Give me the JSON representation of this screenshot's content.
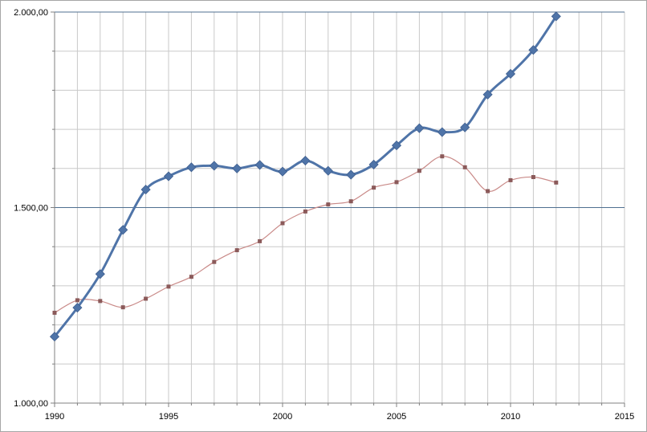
{
  "chart_data": {
    "type": "line",
    "title": "",
    "xlabel": "",
    "ylabel": "",
    "xlim": [
      1990,
      2015
    ],
    "ylim": [
      1000,
      2000
    ],
    "x_ticks": [
      1990,
      1995,
      2000,
      2005,
      2010,
      2015
    ],
    "x_tick_labels": [
      "1990",
      "1995",
      "2000",
      "2005",
      "2010",
      "2015"
    ],
    "y_ticks": [
      1000,
      1500,
      2000
    ],
    "y_tick_labels": [
      "1.000,00",
      "1.500,00",
      "2.000,00"
    ],
    "grid": true,
    "legend": "none",
    "x": [
      1990,
      1991,
      1992,
      1993,
      1994,
      1995,
      1996,
      1997,
      1998,
      1999,
      2000,
      2001,
      2002,
      2003,
      2004,
      2005,
      2006,
      2007,
      2008,
      2009,
      2010,
      2011,
      2012
    ],
    "series": [
      {
        "color": "#4f74a8",
        "marker": "diamond",
        "values": [
          1170,
          1244,
          1330,
          1443,
          1546,
          1580,
          1603,
          1607,
          1600,
          1609,
          1592,
          1620,
          1594,
          1584,
          1610,
          1659,
          1703,
          1693,
          1705,
          1789,
          1842,
          1903,
          1989
        ]
      },
      {
        "color": "#c0504d",
        "marker": "square",
        "values": [
          1231,
          1263,
          1261,
          1245,
          1267,
          1298,
          1323,
          1361,
          1391,
          1414,
          1460,
          1490,
          1508,
          1516,
          1551,
          1565,
          1594,
          1631,
          1603,
          1542,
          1570,
          1578,
          1564
        ]
      }
    ]
  }
}
